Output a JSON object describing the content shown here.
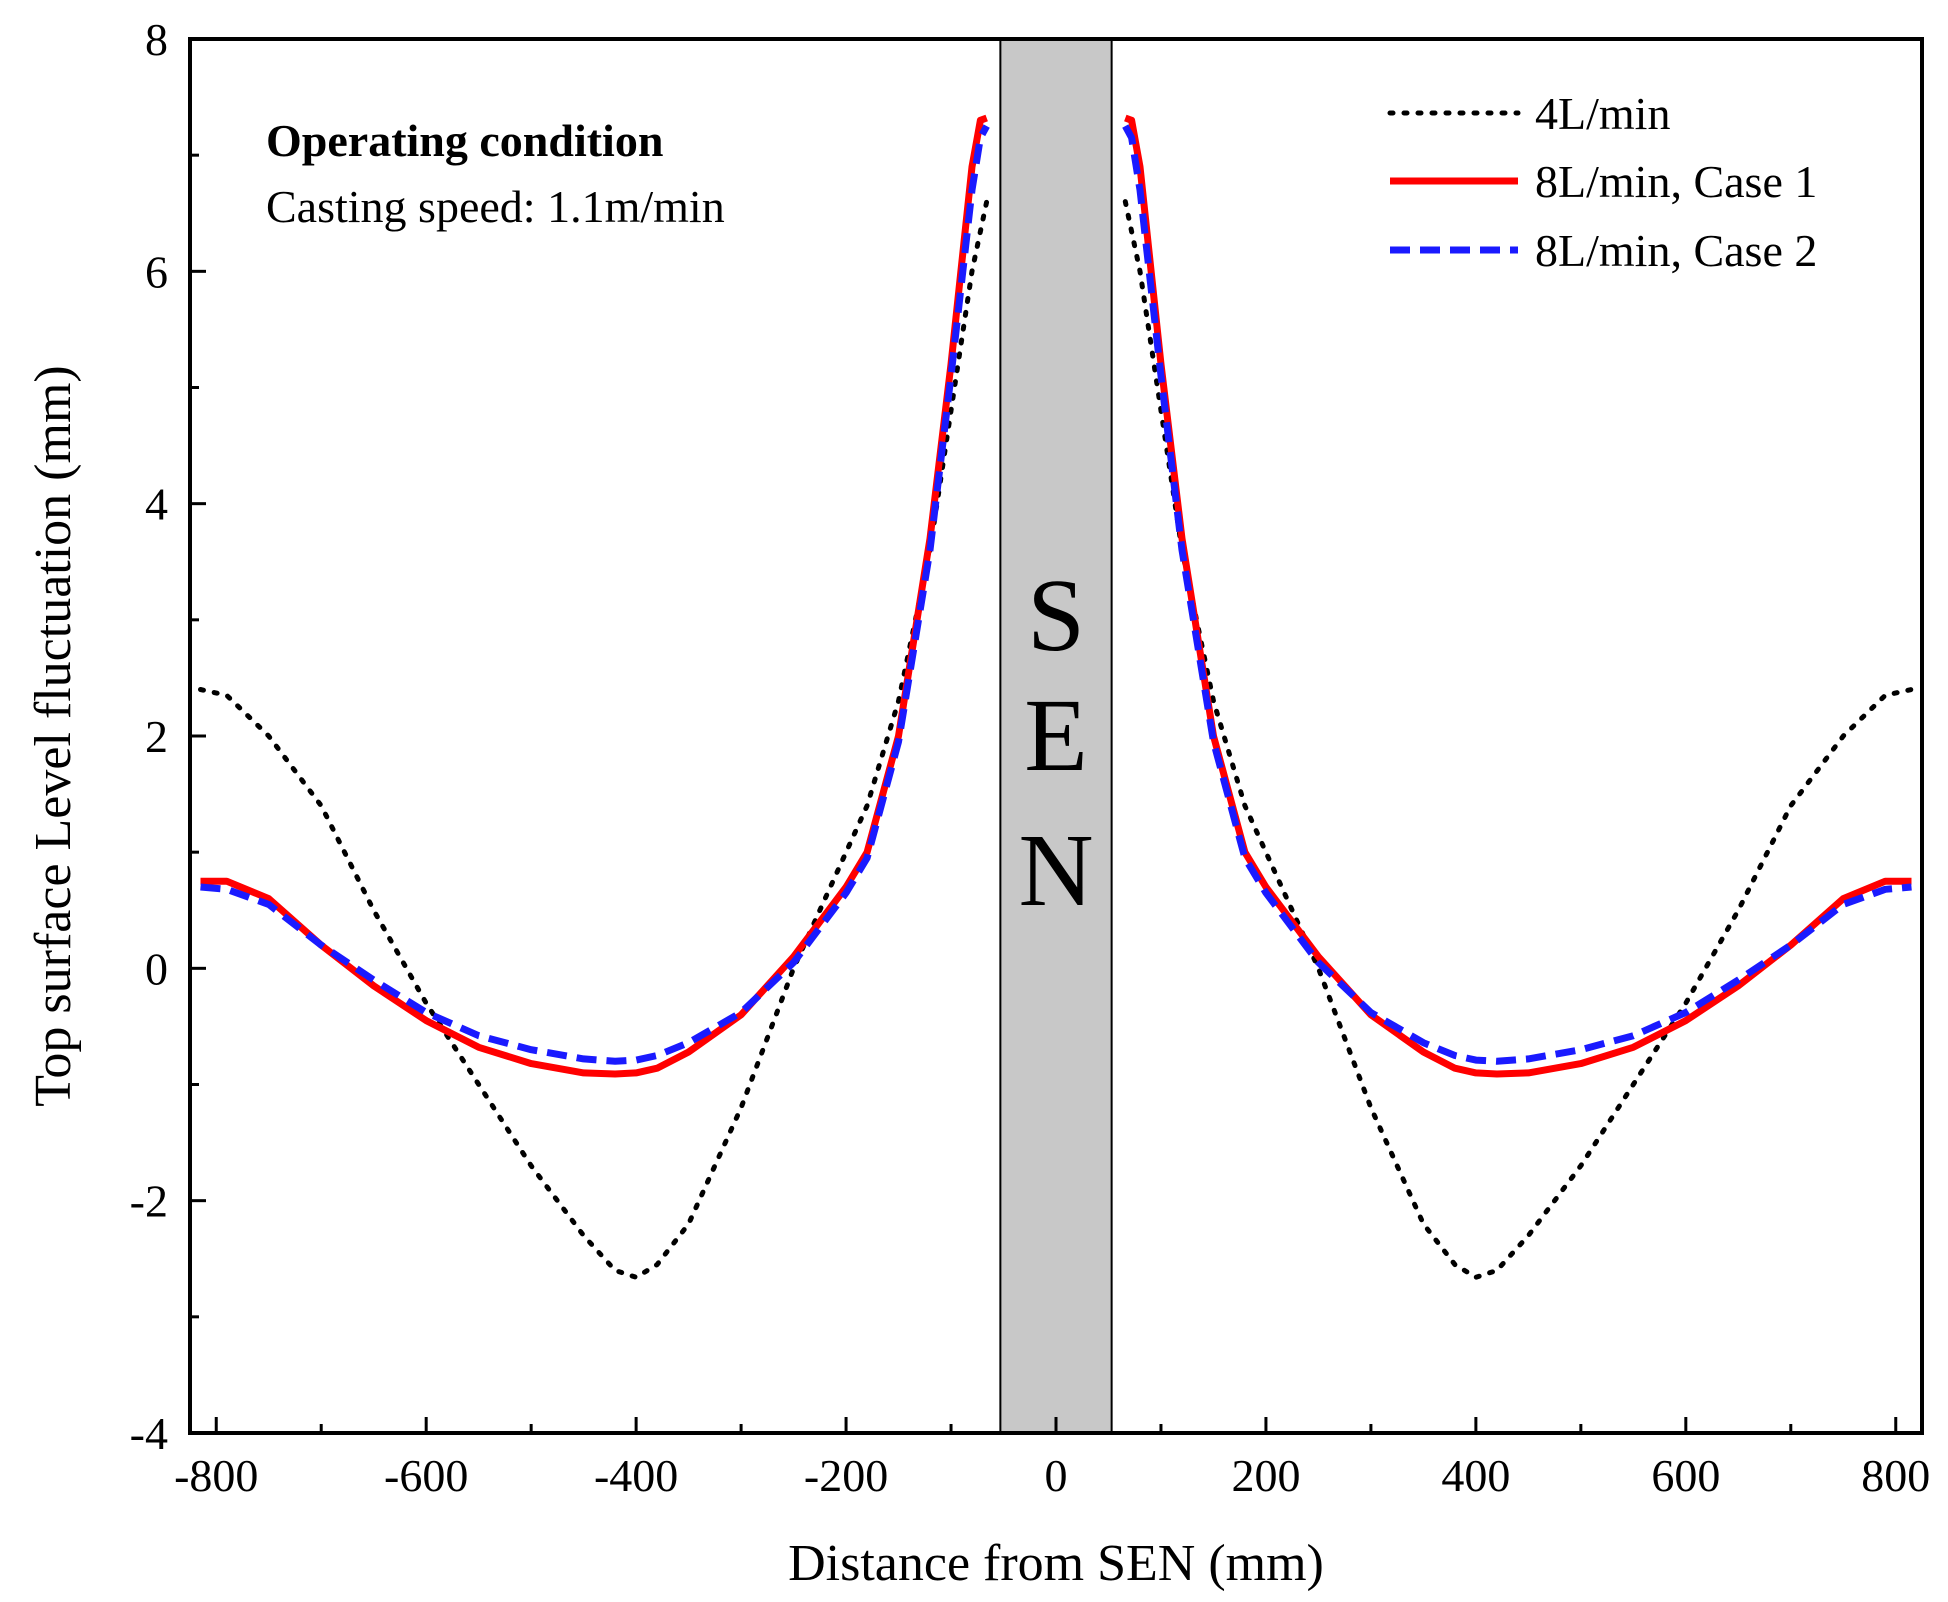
{
  "chart_data": {
    "type": "line",
    "title": "",
    "xlabel": "Distance from SEN (mm)",
    "ylabel": "Top surface Level fluctuation (mm)",
    "xlim": [
      -825,
      825
    ],
    "ylim": [
      -4,
      8
    ],
    "x_ticks": [
      -800,
      -600,
      -400,
      -200,
      0,
      200,
      400,
      600,
      800
    ],
    "y_ticks": [
      -4,
      -2,
      0,
      2,
      4,
      6,
      8
    ],
    "x_tick_labels": [
      "-800",
      "-600",
      "-400",
      "-200",
      "0",
      "200",
      "400",
      "600",
      "800"
    ],
    "y_tick_labels": [
      "-4",
      "-2",
      "0",
      "2",
      "4",
      "6",
      "8"
    ],
    "grid": false,
    "legend_position": "top-right",
    "sen_region": {
      "x_range": [
        -53,
        53
      ],
      "label_letters": [
        "S",
        "E",
        "N"
      ],
      "color": "#c8c8c8"
    },
    "annotation": {
      "title": "Operating condition",
      "text": "Casting speed: 1.1m/min"
    },
    "series": [
      {
        "name": "4L/min",
        "color": "#000000",
        "style": "dotted",
        "x": [
          -815,
          -790,
          -750,
          -700,
          -650,
          -600,
          -550,
          -500,
          -450,
          -420,
          -400,
          -380,
          -350,
          -300,
          -250,
          -200,
          -180,
          -150,
          -120,
          -100,
          -80,
          -66,
          66,
          80,
          100,
          120,
          150,
          180,
          200,
          250,
          300,
          350,
          380,
          400,
          420,
          450,
          500,
          550,
          600,
          650,
          700,
          750,
          790,
          815
        ],
        "y": [
          2.4,
          2.35,
          2.0,
          1.4,
          0.5,
          -0.3,
          -1.0,
          -1.7,
          -2.3,
          -2.6,
          -2.66,
          -2.55,
          -2.2,
          -1.2,
          0.0,
          1.0,
          1.4,
          2.3,
          3.6,
          4.8,
          6.0,
          6.6,
          6.6,
          6.0,
          4.8,
          3.6,
          2.3,
          1.4,
          1.0,
          0.0,
          -1.2,
          -2.2,
          -2.55,
          -2.66,
          -2.6,
          -2.3,
          -1.7,
          -1.0,
          -0.3,
          0.5,
          1.4,
          2.0,
          2.35,
          2.4
        ]
      },
      {
        "name": "8L/min, Case 1",
        "color": "#ff0000",
        "style": "solid",
        "x": [
          -815,
          -790,
          -750,
          -700,
          -650,
          -600,
          -550,
          -500,
          -450,
          -420,
          -400,
          -380,
          -350,
          -300,
          -250,
          -200,
          -180,
          -150,
          -120,
          -100,
          -80,
          -72,
          -66,
          66,
          72,
          80,
          100,
          120,
          150,
          180,
          200,
          250,
          300,
          350,
          380,
          400,
          420,
          450,
          500,
          550,
          600,
          650,
          700,
          750,
          790,
          815
        ],
        "y": [
          0.75,
          0.75,
          0.6,
          0.2,
          -0.15,
          -0.45,
          -0.68,
          -0.82,
          -0.9,
          -0.91,
          -0.9,
          -0.86,
          -0.72,
          -0.4,
          0.1,
          0.7,
          1.0,
          2.0,
          3.7,
          5.2,
          6.9,
          7.3,
          7.32,
          7.32,
          7.3,
          6.9,
          5.2,
          3.7,
          2.0,
          1.0,
          0.7,
          0.1,
          -0.4,
          -0.72,
          -0.86,
          -0.9,
          -0.91,
          -0.9,
          -0.82,
          -0.68,
          -0.45,
          -0.15,
          0.2,
          0.6,
          0.75,
          0.75
        ]
      },
      {
        "name": "8L/min, Case 2",
        "color": "#1a1aff",
        "style": "dashed",
        "x": [
          -815,
          -790,
          -750,
          -700,
          -650,
          -600,
          -550,
          -500,
          -450,
          -420,
          -400,
          -380,
          -350,
          -300,
          -250,
          -200,
          -180,
          -150,
          -120,
          -100,
          -80,
          -72,
          -66,
          66,
          72,
          80,
          100,
          120,
          150,
          180,
          200,
          250,
          300,
          350,
          380,
          400,
          420,
          450,
          500,
          550,
          600,
          650,
          700,
          750,
          790,
          815
        ],
        "y": [
          0.7,
          0.68,
          0.55,
          0.2,
          -0.1,
          -0.38,
          -0.58,
          -0.7,
          -0.78,
          -0.8,
          -0.79,
          -0.75,
          -0.64,
          -0.38,
          0.05,
          0.65,
          0.95,
          1.95,
          3.6,
          5.1,
          6.7,
          7.15,
          7.25,
          7.25,
          7.15,
          6.7,
          5.1,
          3.6,
          1.95,
          0.95,
          0.65,
          0.05,
          -0.38,
          -0.64,
          -0.75,
          -0.79,
          -0.8,
          -0.78,
          -0.7,
          -0.58,
          -0.38,
          -0.1,
          0.2,
          0.55,
          0.68,
          0.7
        ]
      }
    ]
  }
}
